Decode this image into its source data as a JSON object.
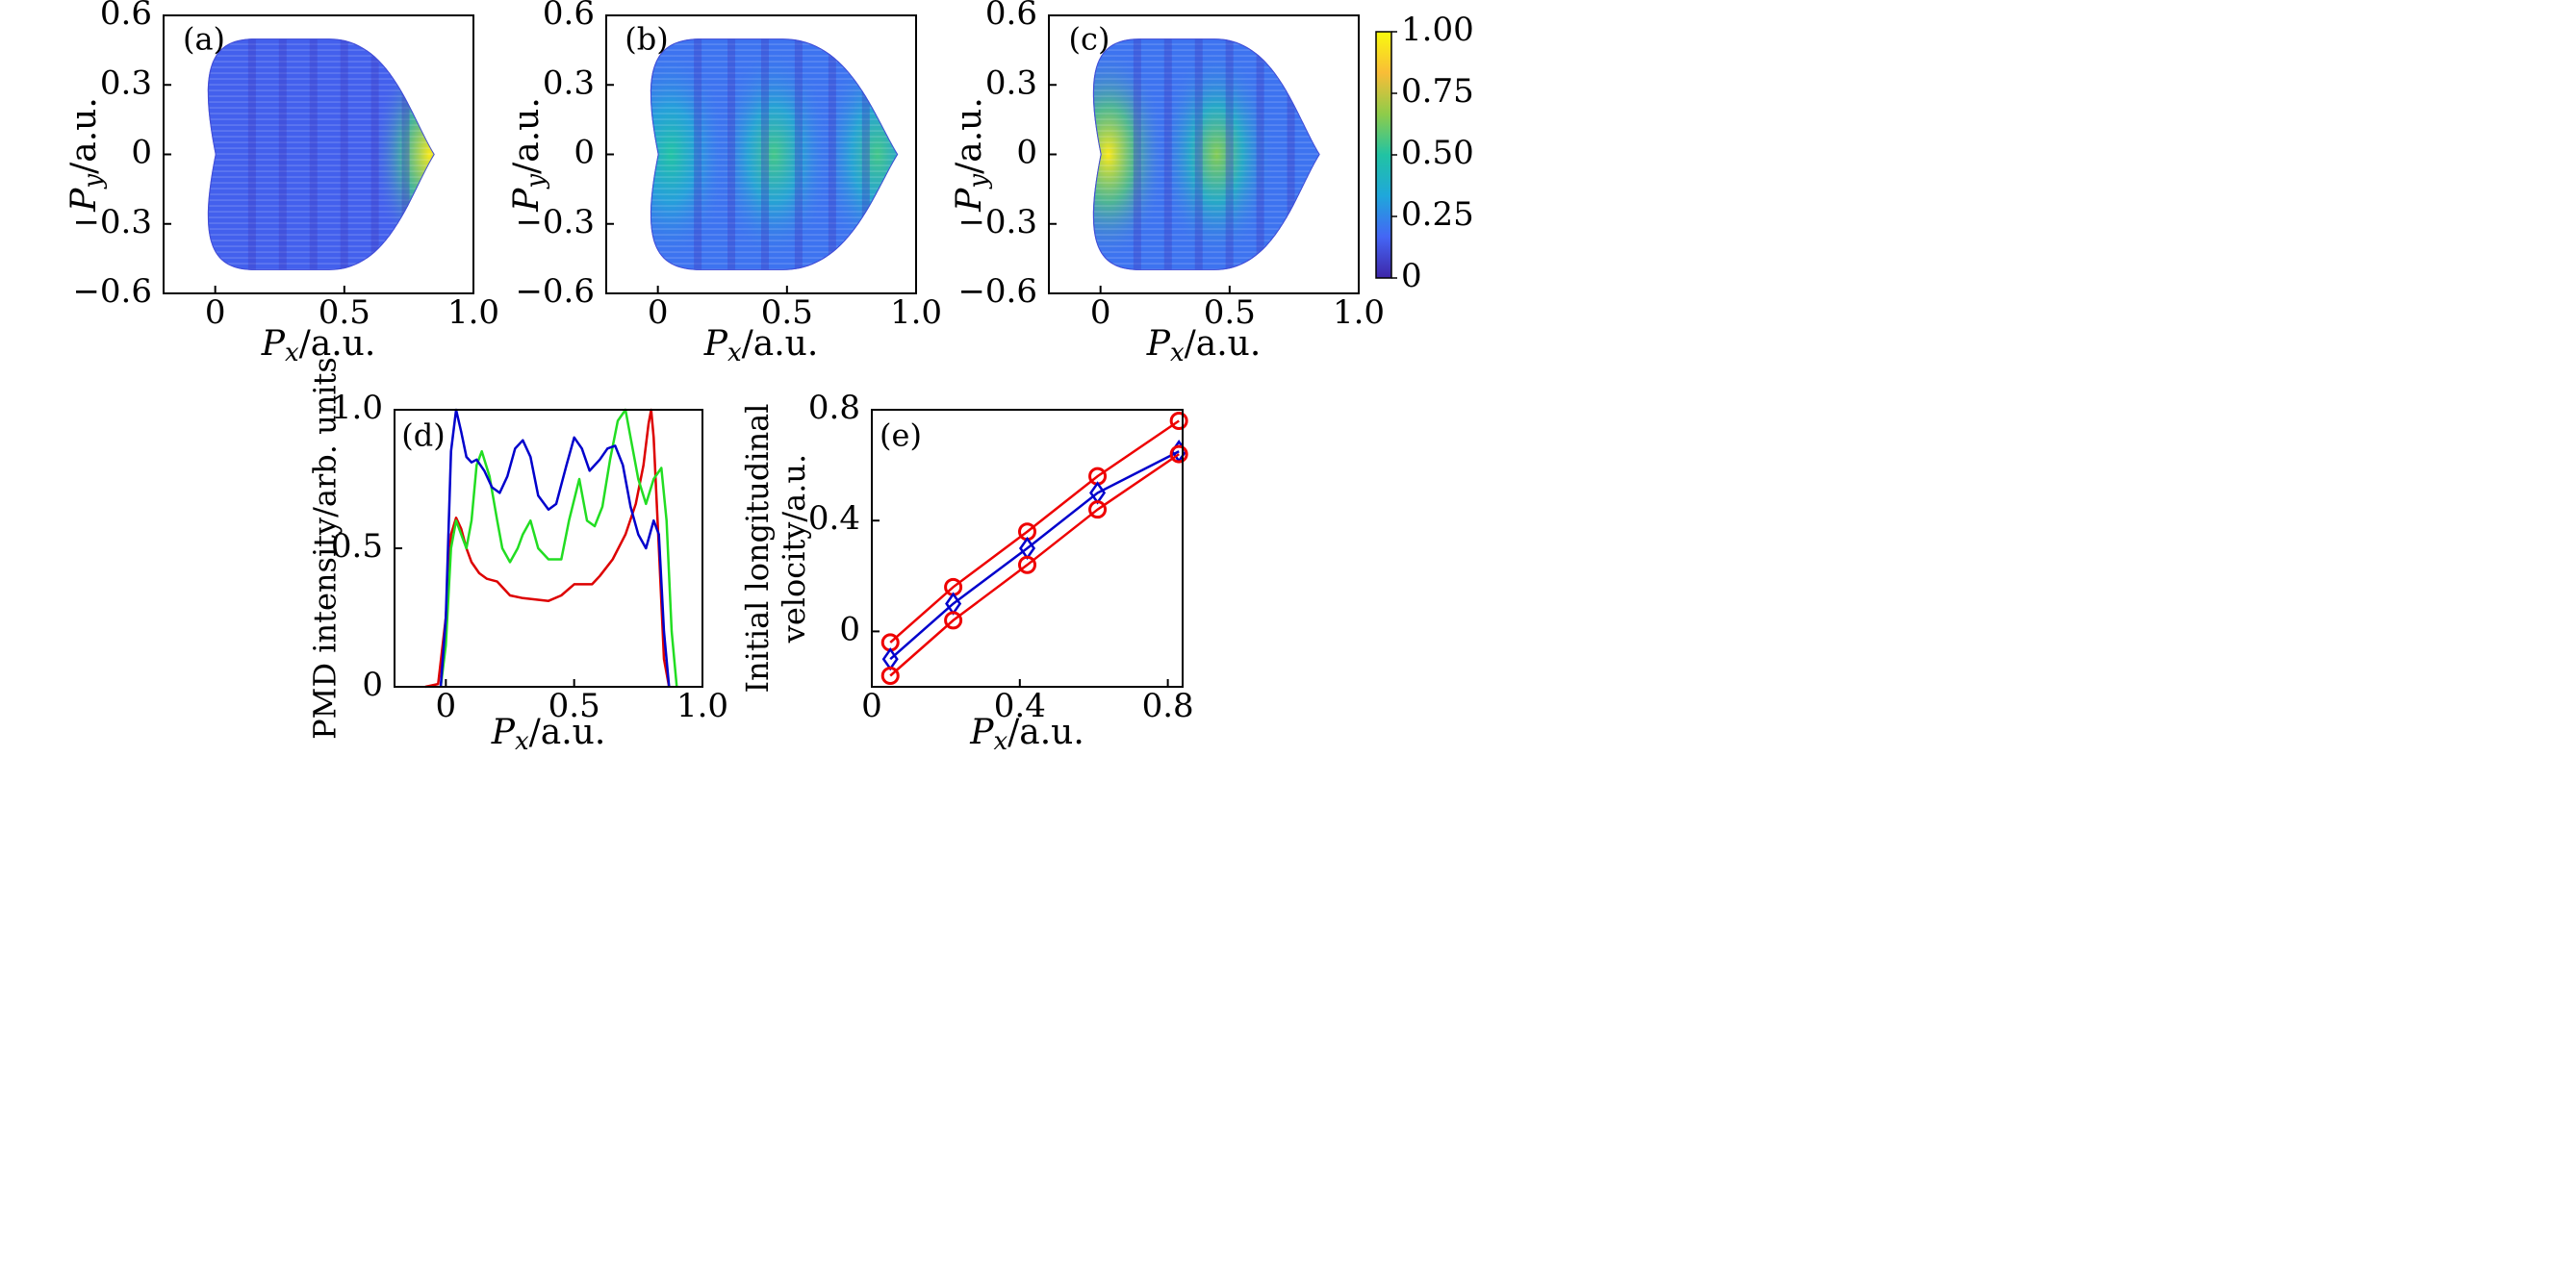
{
  "chart_data": [
    {
      "panel": "(a)",
      "type": "heatmap",
      "xlabel": "P_x/a.u.",
      "ylabel": "P_y/a.u.",
      "xlim": [
        -0.2,
        1.0
      ],
      "ylim": [
        -0.6,
        0.6
      ],
      "xticks": [
        "0",
        "0.5",
        "1.0"
      ],
      "yticks": [
        "0.6",
        "0.3",
        "0",
        "−0.3",
        "−0.6"
      ],
      "shape": {
        "left": 0.0,
        "right": 0.85,
        "top": 0.5,
        "bottom": -0.5
      },
      "hotspots": [
        {
          "px": 0.83,
          "py": 0.0,
          "level": 0.95
        }
      ],
      "base_level": 0.15
    },
    {
      "panel": "(b)",
      "type": "heatmap",
      "xlabel": "P_x/a.u.",
      "ylabel": "P_y/a.u.",
      "xlim": [
        -0.2,
        1.0
      ],
      "ylim": [
        -0.6,
        0.6
      ],
      "xticks": [
        "0",
        "0.5",
        "1.0"
      ],
      "yticks": [
        "0.6",
        "0.3",
        "0",
        "−0.3",
        "−0.6"
      ],
      "shape": {
        "left": 0.0,
        "right": 0.93,
        "top": 0.5,
        "bottom": -0.5
      },
      "hotspots": [
        {
          "px": 0.45,
          "py": 0.0,
          "level": 0.55
        },
        {
          "px": 0.85,
          "py": 0.0,
          "level": 0.55
        },
        {
          "px": 0.05,
          "py": 0.0,
          "level": 0.5
        }
      ],
      "base_level": 0.2
    },
    {
      "panel": "(c)",
      "type": "heatmap",
      "xlabel": "P_x/a.u.",
      "ylabel": "P_y/a.u.",
      "xlim": [
        -0.2,
        1.0
      ],
      "ylim": [
        -0.6,
        0.6
      ],
      "xticks": [
        "0",
        "0.5",
        "1.0"
      ],
      "yticks": [
        "0.6",
        "0.3",
        "0",
        "−0.3",
        "−0.6"
      ],
      "shape": {
        "left": 0.0,
        "right": 0.85,
        "top": 0.5,
        "bottom": -0.5
      },
      "hotspots": [
        {
          "px": 0.03,
          "py": 0.0,
          "level": 0.95
        },
        {
          "px": 0.45,
          "py": 0.0,
          "level": 0.65
        }
      ],
      "base_level": 0.2
    },
    {
      "panel": "colorbar",
      "type": "heatmap",
      "ticks": [
        "1.00",
        "0.75",
        "0.50",
        "0.25",
        "0"
      ],
      "colors": [
        "#3e26a8",
        "#4466f5",
        "#1fa7db",
        "#21c3a3",
        "#8fcc4a",
        "#f9bd37",
        "#f9fb0e"
      ]
    },
    {
      "panel": "(d)",
      "type": "line",
      "xlabel": "P_x/a.u.",
      "ylabel": "PMD intensity/arb. units",
      "xlim": [
        -0.2,
        1.0
      ],
      "ylim": [
        0,
        1.0
      ],
      "xticks": [
        "0",
        "0.5",
        "1.0"
      ],
      "yticks": [
        "1.0",
        "0.5",
        "0"
      ],
      "series": [
        {
          "color": "#dd0000",
          "x": [
            -0.08,
            -0.03,
            0.0,
            0.02,
            0.04,
            0.06,
            0.08,
            0.1,
            0.13,
            0.16,
            0.2,
            0.25,
            0.3,
            0.35,
            0.4,
            0.45,
            0.5,
            0.53,
            0.57,
            0.6,
            0.65,
            0.7,
            0.74,
            0.77,
            0.79,
            0.8,
            0.81,
            0.83,
            0.85,
            0.87
          ],
          "y": [
            0.0,
            0.01,
            0.25,
            0.55,
            0.61,
            0.57,
            0.5,
            0.45,
            0.41,
            0.39,
            0.38,
            0.33,
            0.32,
            0.315,
            0.31,
            0.33,
            0.37,
            0.37,
            0.37,
            0.4,
            0.46,
            0.55,
            0.66,
            0.8,
            0.95,
            1.0,
            0.9,
            0.5,
            0.1,
            0.0
          ]
        },
        {
          "color": "#22dd22",
          "x": [
            -0.02,
            0.0,
            0.02,
            0.04,
            0.06,
            0.08,
            0.1,
            0.12,
            0.14,
            0.17,
            0.2,
            0.22,
            0.25,
            0.28,
            0.3,
            0.33,
            0.36,
            0.4,
            0.45,
            0.48,
            0.52,
            0.55,
            0.58,
            0.61,
            0.64,
            0.67,
            0.7,
            0.72,
            0.75,
            0.78,
            0.81,
            0.84,
            0.86,
            0.88,
            0.9
          ],
          "y": [
            0.0,
            0.15,
            0.5,
            0.6,
            0.55,
            0.5,
            0.6,
            0.8,
            0.85,
            0.76,
            0.6,
            0.5,
            0.45,
            0.5,
            0.55,
            0.6,
            0.5,
            0.46,
            0.46,
            0.6,
            0.75,
            0.6,
            0.58,
            0.65,
            0.82,
            0.96,
            1.0,
            0.9,
            0.75,
            0.66,
            0.75,
            0.79,
            0.6,
            0.2,
            0.0
          ]
        },
        {
          "color": "#0000cc",
          "x": [
            -0.02,
            0.0,
            0.02,
            0.04,
            0.06,
            0.08,
            0.1,
            0.12,
            0.15,
            0.18,
            0.21,
            0.24,
            0.27,
            0.3,
            0.33,
            0.36,
            0.4,
            0.43,
            0.47,
            0.5,
            0.53,
            0.56,
            0.6,
            0.63,
            0.66,
            0.69,
            0.72,
            0.75,
            0.78,
            0.81,
            0.83,
            0.85,
            0.87
          ],
          "y": [
            0.0,
            0.25,
            0.85,
            1.0,
            0.92,
            0.83,
            0.81,
            0.82,
            0.78,
            0.72,
            0.7,
            0.76,
            0.86,
            0.89,
            0.83,
            0.69,
            0.64,
            0.66,
            0.8,
            0.9,
            0.86,
            0.78,
            0.82,
            0.86,
            0.87,
            0.8,
            0.65,
            0.55,
            0.5,
            0.6,
            0.55,
            0.2,
            0.0
          ]
        }
      ]
    },
    {
      "panel": "(e)",
      "type": "line",
      "xlabel": "P_x/a.u.",
      "ylabel": "Initial longitudinal velocity/a.u.",
      "xlim": [
        0,
        0.84
      ],
      "ylim": [
        -0.2,
        0.8
      ],
      "xticks": [
        "0",
        "0.4",
        "0.8"
      ],
      "yticks": [
        "0.8",
        "0.4",
        "0"
      ],
      "series": [
        {
          "color": "#ee0000",
          "marker": "circle",
          "x": [
            0.05,
            0.22,
            0.42,
            0.61,
            0.83
          ],
          "y": [
            -0.04,
            0.16,
            0.36,
            0.56,
            0.76
          ]
        },
        {
          "color": "#0000cc",
          "marker": "diamond",
          "x": [
            0.05,
            0.22,
            0.42,
            0.61,
            0.83
          ],
          "y": [
            -0.1,
            0.1,
            0.3,
            0.5,
            0.65
          ]
        },
        {
          "color": "#ee0000",
          "marker": "circle",
          "x": [
            0.05,
            0.22,
            0.42,
            0.61,
            0.83
          ],
          "y": [
            -0.16,
            0.04,
            0.24,
            0.44,
            0.64
          ]
        }
      ]
    }
  ]
}
